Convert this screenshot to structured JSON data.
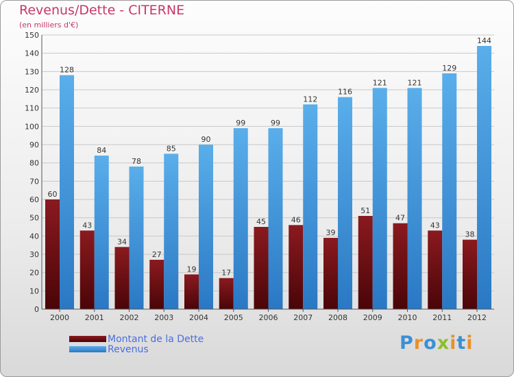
{
  "header": {
    "title": "Revenus/Dette - CITERNE",
    "subtitle": "(en milliers d'€)"
  },
  "legend": {
    "items": [
      {
        "label": "Montant de la Dette",
        "color": "#7a1016"
      },
      {
        "label": "Revenus",
        "color": "#4a9fe0"
      }
    ]
  },
  "logo": {
    "text": "Proxiti"
  },
  "chart_data": {
    "type": "bar",
    "title": "Revenus/Dette - CITERNE",
    "subtitle": "(en milliers d'€)",
    "xlabel": "",
    "ylabel": "",
    "categories": [
      "2000",
      "2001",
      "2002",
      "2003",
      "2004",
      "2005",
      "2006",
      "2007",
      "2008",
      "2009",
      "2010",
      "2011",
      "2012"
    ],
    "series": [
      {
        "name": "Montant de la Dette",
        "color": "#7a1016",
        "values": [
          60,
          43,
          34,
          27,
          19,
          17,
          45,
          46,
          39,
          51,
          47,
          43,
          38
        ]
      },
      {
        "name": "Revenus",
        "color": "#4a9fe0",
        "values": [
          128,
          84,
          78,
          85,
          90,
          99,
          99,
          112,
          116,
          121,
          121,
          129,
          144
        ]
      }
    ],
    "ylim": [
      0,
      150
    ],
    "yticks": [
      0,
      10,
      20,
      30,
      40,
      50,
      60,
      70,
      80,
      90,
      100,
      110,
      120,
      130,
      140,
      150
    ],
    "grid": true,
    "legend_position": "bottom-left",
    "data_labels": true
  }
}
